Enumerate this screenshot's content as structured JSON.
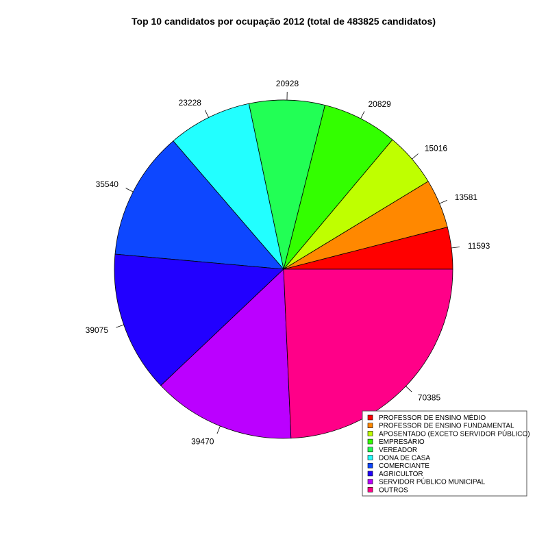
{
  "chart_data": {
    "type": "pie",
    "title": "Top 10 candidatos por ocupação 2012 (total de 483825 candidatos)",
    "direction": "counter-clockwise from 3 o'clock",
    "slices": [
      {
        "name": "PROFESSOR DE ENSINO MÉDIO",
        "value": 11593,
        "color": "#FF0000"
      },
      {
        "name": "PROFESSOR DE ENSINO FUNDAMENTAL",
        "value": 13581,
        "color": "#FF8800"
      },
      {
        "name": "APOSENTADO (EXCETO SERVIDOR PÚBLICO)",
        "value": 15016,
        "color": "#BFFF00"
      },
      {
        "name": "EMPRESÁRIO",
        "value": 20829,
        "color": "#33FF00"
      },
      {
        "name": "VEREADOR",
        "value": 20928,
        "color": "#22FF55"
      },
      {
        "name": "DONA DE CASA",
        "value": 23228,
        "color": "#22FFFF"
      },
      {
        "name": "COMERCIANTE",
        "value": 35540,
        "color": "#0D47FF"
      },
      {
        "name": "AGRICULTOR",
        "value": 39075,
        "color": "#2200FF"
      },
      {
        "name": "SERVIDOR PÚBLICO MUNICIPAL",
        "value": 39470,
        "color": "#BB00FF"
      },
      {
        "name": "OUTROS",
        "value": 70385,
        "color": "#FF0088"
      }
    ],
    "legend": {
      "position": "bottom-right"
    }
  }
}
